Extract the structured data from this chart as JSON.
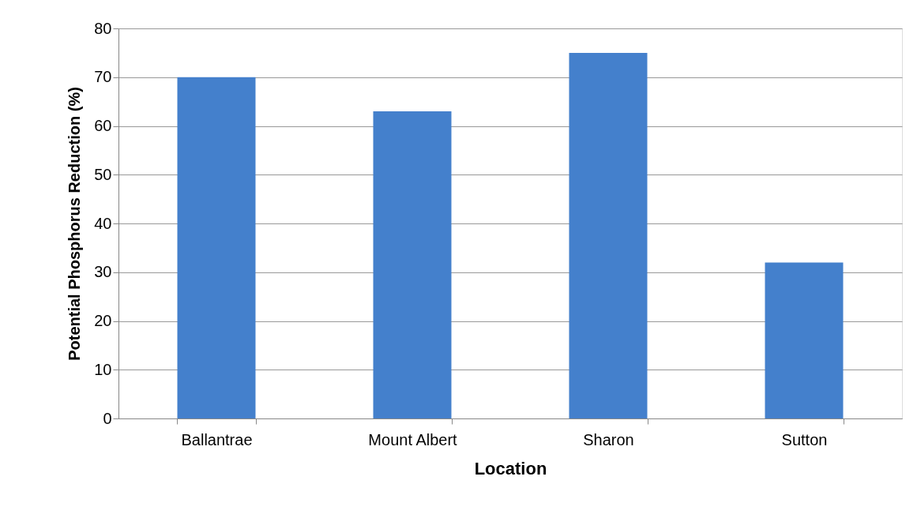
{
  "chart_data": {
    "type": "bar",
    "xlabel": "Location",
    "ylabel": "Potential Phosphorus Reduction (%)",
    "categories": [
      "Ballantrae",
      "Mount Albert",
      "Sharon",
      "Sutton"
    ],
    "values": [
      70,
      63,
      75,
      32
    ],
    "color": "#4480cc",
    "ylim": [
      0,
      80
    ],
    "yticks": [
      0,
      10,
      20,
      30,
      40,
      50,
      60,
      70,
      80
    ],
    "grid": "y"
  }
}
